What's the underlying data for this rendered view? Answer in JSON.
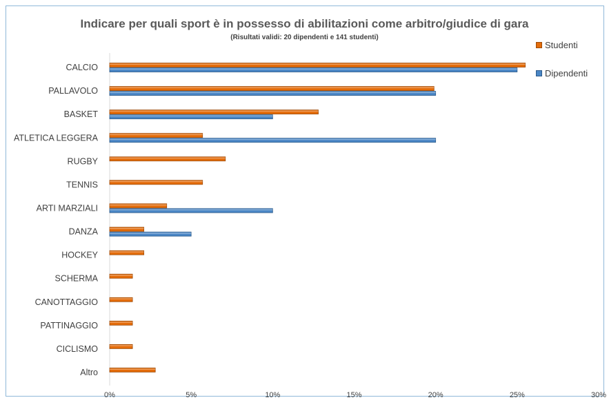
{
  "chart_data": {
    "type": "bar",
    "orientation": "horizontal",
    "title": "Indicare per quali sport è in possesso di abilitazioni come arbitro/giudice di gara",
    "subtitle": "(Risultati validi: 20 dipendenti e 141 studenti)",
    "categories": [
      "CALCIO",
      "PALLAVOLO",
      "BASKET",
      "ATLETICA LEGGERA",
      "RUGBY",
      "TENNIS",
      "ARTI MARZIALI",
      "DANZA",
      "HOCKEY",
      "SCHERMA",
      "CANOTTAGGIO",
      "PATTINAGGIO",
      "CICLISMO",
      "Altro"
    ],
    "series": [
      {
        "name": "Studenti",
        "color": "#e46c0a",
        "values": [
          25.5,
          19.9,
          12.8,
          5.7,
          7.1,
          5.7,
          3.5,
          2.1,
          2.1,
          1.4,
          1.4,
          1.4,
          1.4,
          2.8
        ]
      },
      {
        "name": "Dipendenti",
        "color": "#4a86c5",
        "values": [
          25,
          20,
          10,
          20,
          0,
          0,
          10,
          5,
          0,
          0,
          0,
          0,
          0,
          0
        ]
      }
    ],
    "xlim": [
      0,
      30
    ],
    "xticks": [
      0,
      5,
      10,
      15,
      20,
      25,
      30
    ],
    "tick_suffix": "%",
    "grid": false,
    "legend_placement": "top-right"
  }
}
